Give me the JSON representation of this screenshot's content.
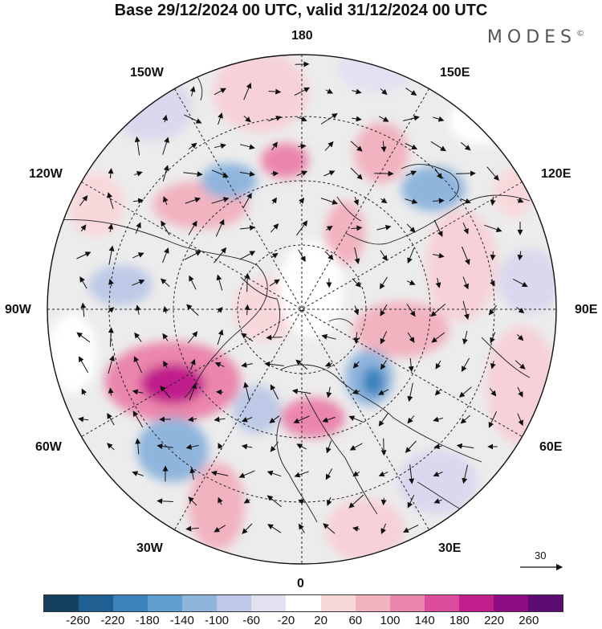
{
  "title": "Base 29/12/2024 00 UTC, valid 31/12/2024 00 UTC",
  "brand": "MODES",
  "brand_mark": "©",
  "lon_labels": {
    "top": "180",
    "bottom": "0",
    "left": "90W",
    "right": "90E",
    "nw1": "150W",
    "ne1": "150E",
    "nw2": "120W",
    "ne2": "120E",
    "sw1": "60W",
    "se1": "60E",
    "sw2": "30W",
    "se2": "30E"
  },
  "wind_reference": "30",
  "colorbar": {
    "colors": [
      "#15405f",
      "#1f5f92",
      "#3b82bd",
      "#5f9fd0",
      "#8fb5dd",
      "#bdc9e6",
      "#e2e1f1",
      "#ffffff",
      "#f9d8dc",
      "#f2b3c0",
      "#eb86ac",
      "#dc4c9c",
      "#c01f8c",
      "#8f0c82",
      "#5d0c74"
    ],
    "ticks": [
      "-260",
      "-220",
      "-180",
      "-140",
      "-100",
      "-60",
      "-20",
      "20",
      "60",
      "100",
      "140",
      "180",
      "220",
      "260"
    ]
  }
}
